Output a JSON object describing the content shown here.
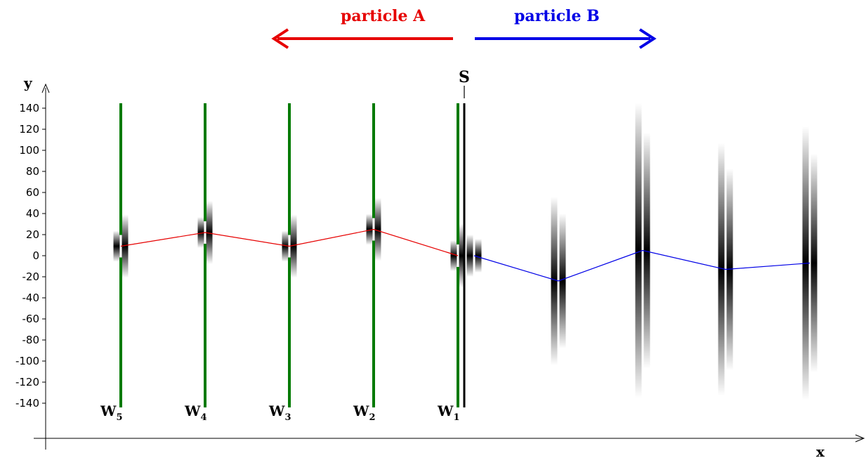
{
  "particles": {
    "a": {
      "label": "particle A",
      "color": "#e60000"
    },
    "b": {
      "label": "particle B",
      "color": "#0000e6"
    }
  },
  "axes": {
    "x_label": "x",
    "y_label": "y",
    "y_ticks": [
      "140",
      "120",
      "100",
      "80",
      "60",
      "40",
      "20",
      "0",
      "-20",
      "-40",
      "-60",
      "-80",
      "-100",
      "-120",
      "-140"
    ]
  },
  "source_label": "S",
  "wall_color": "#007a00",
  "walls": [
    {
      "id": "w5",
      "base": "W",
      "sub": "5",
      "slit_y": 9
    },
    {
      "id": "w4",
      "base": "W",
      "sub": "4",
      "slit_y": 22
    },
    {
      "id": "w3",
      "base": "W",
      "sub": "3",
      "slit_y": 9
    },
    {
      "id": "w2",
      "base": "W",
      "sub": "2",
      "slit_y": 25
    },
    {
      "id": "w1",
      "base": "W",
      "sub": "1",
      "slit_y": 0
    }
  ],
  "trajectory_a_y": [
    9,
    22,
    9,
    25,
    0
  ],
  "trajectory_b_y": [
    0,
    -24,
    5,
    -13,
    -7
  ],
  "screens_b": [
    {
      "id": "b1",
      "center_y": 0,
      "spread": 20
    },
    {
      "id": "b2",
      "center_y": -24,
      "spread": 80
    },
    {
      "id": "b3",
      "center_y": 5,
      "spread": 140
    },
    {
      "id": "b4",
      "center_y": -13,
      "spread": 120
    },
    {
      "id": "b5",
      "center_y": -7,
      "spread": 130
    }
  ]
}
